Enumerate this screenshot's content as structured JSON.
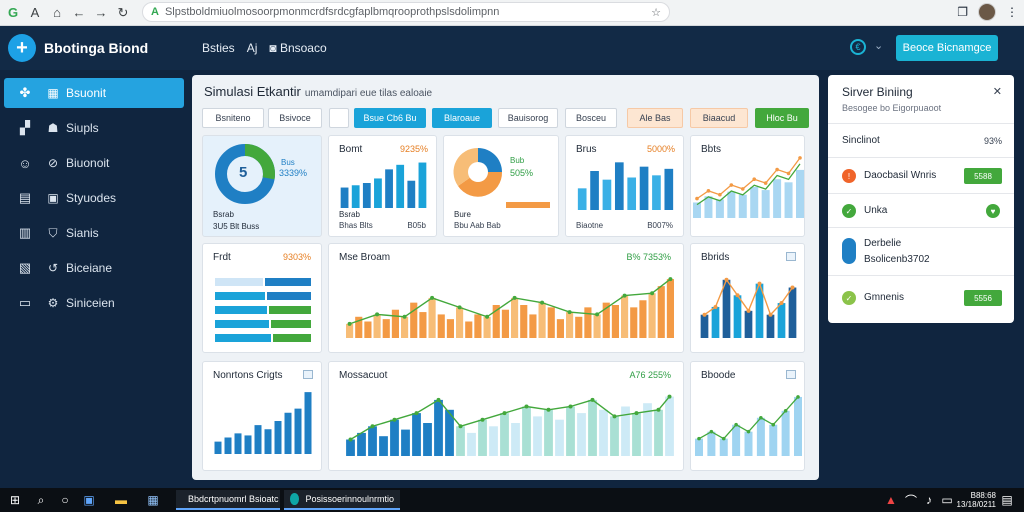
{
  "browser": {
    "url": "Slpstboldmiuolmosoorpmonmcrdfsrdcgfaplbmqrooprothpslsdolimpnn",
    "back_icon": "back-arrow-icon",
    "star_icon": "star-icon"
  },
  "header": {
    "brand": "Bbotinga Biond",
    "nav": [
      "Bsties",
      "Aj",
      "Bnsoaco"
    ],
    "action_button": "Beoce Bicnamgce"
  },
  "sidebar": {
    "items": [
      {
        "label": "Bsuonit",
        "icon": "puzzle-icon",
        "active": true
      },
      {
        "label": "Siupls",
        "icon": "chat-icon",
        "active": false
      },
      {
        "label": "Biuonoit",
        "icon": "user-icon",
        "active": false
      },
      {
        "label": "Styuodes",
        "icon": "grid-icon",
        "active": false
      },
      {
        "label": "Sianis",
        "icon": "table-icon",
        "active": false
      },
      {
        "label": "Biceiane",
        "icon": "document-icon",
        "active": false
      },
      {
        "label": "Siniceien",
        "icon": "monitor-icon",
        "active": false
      }
    ]
  },
  "main": {
    "title": "Simulasi Etkantir",
    "subtitle": "umamdipari eue tilas ealoaie",
    "filters": [
      "Bsniteno",
      "Bsivoce",
      "Bsue Cb6 Bu",
      "Blaroaue",
      "Bauisorog",
      "Bosceu",
      "Ale Bas",
      "Biaacud",
      "Hloc Bu"
    ],
    "cards": {
      "donut": {
        "big_label": "5",
        "val_a": "Bus",
        "val_b": "3339%",
        "foot_a": "Bsrab",
        "foot_b": "3U5 Blt Buss"
      },
      "bar1": {
        "title": "Bomt",
        "value": "9235%",
        "foot_a": "Bsrab",
        "foot_b": "Bhas Blts",
        "foot_c": "B05b"
      },
      "pie": {
        "val_a": "Bub",
        "val_b": "505%",
        "foot_a": "Bure",
        "foot_b": "Bbu Aab Bab"
      },
      "bar2": {
        "title": "Brus",
        "value": "5000%",
        "foot_a": "Biaotne",
        "foot_b": "B007%"
      },
      "area1": {
        "title": "Bbts"
      },
      "hbar": {
        "title": "Frdt",
        "value": "9303%"
      },
      "combo": {
        "title": "Mse Broam",
        "value": "B% 7353%"
      },
      "combo_small": {
        "title": "Bbrids"
      },
      "bar3": {
        "title": "Nonrtons Crigts"
      },
      "blue_combo": {
        "title": "Mossacuot",
        "value": "A76 255%"
      },
      "area2": {
        "title": "Bboode"
      }
    }
  },
  "rpanel": {
    "title": "Sirver Biniing",
    "subtitle": "Besogee bo Eigorpuaoot",
    "rows": [
      {
        "label": "Sinclinot",
        "value": "93%"
      },
      {
        "label": "Daocbasil Wnris",
        "action": "5588",
        "status_icon": "alert-icon"
      },
      {
        "label": "Unka",
        "status_icon": "check-icon"
      },
      {
        "label": "Derbelie",
        "sub": "Bsolicenb3702",
        "status_icon": "info-icon"
      },
      {
        "label": "Gmnenis",
        "action": "5556",
        "status_icon": "check-icon"
      }
    ]
  },
  "taskbar": {
    "apps": [
      "Bbdcrtpnuomrl Bsioatc",
      "Posissoerinnoulnrmtio"
    ],
    "time": "B88:68",
    "date": "13/18/0211"
  },
  "colors": {
    "accent": "#1aa3d9",
    "orange": "#f39a45",
    "green": "#43a83c",
    "navy": "#10253f"
  },
  "chart_data": [
    {
      "type": "bar",
      "categories": [
        "a",
        "b",
        "c",
        "d",
        "e",
        "f",
        "g",
        "h"
      ],
      "values": [
        18,
        20,
        22,
        26,
        34,
        38,
        24,
        40
      ]
    },
    {
      "type": "bar",
      "categories": [
        "a",
        "b",
        "c",
        "d",
        "e",
        "f",
        "g",
        "h"
      ],
      "values": [
        20,
        36,
        28,
        44,
        30,
        40,
        32,
        38
      ]
    },
    {
      "type": "line",
      "x": [
        1,
        2,
        3,
        4,
        5,
        6,
        7,
        8,
        9,
        10
      ],
      "values": [
        20,
        28,
        24,
        34,
        30,
        40,
        36,
        50,
        46,
        62
      ]
    },
    {
      "type": "bar",
      "categories": [
        "a",
        "b",
        "c",
        "d",
        "e",
        "f",
        "g",
        "h",
        "i",
        "j",
        "k",
        "l",
        "m",
        "n",
        "o",
        "p",
        "q",
        "r",
        "s",
        "t",
        "u",
        "v",
        "w",
        "x",
        "y",
        "z",
        "aa",
        "ab",
        "ac",
        "ad",
        "ae",
        "af",
        "ag",
        "ah",
        "ai",
        "aj"
      ],
      "values": [
        12,
        18,
        14,
        20,
        16,
        24,
        18,
        30,
        22,
        34,
        20,
        16,
        26,
        14,
        20,
        18,
        28,
        24,
        34,
        28,
        20,
        30,
        26,
        16,
        22,
        18,
        26,
        20,
        30,
        28,
        36,
        26,
        32,
        38,
        44,
        50
      ]
    },
    {
      "type": "bar",
      "categories": [
        "a",
        "b",
        "c",
        "d",
        "e",
        "f",
        "g",
        "h",
        "i"
      ],
      "values": [
        12,
        16,
        30,
        22,
        14,
        28,
        12,
        18,
        26
      ]
    },
    {
      "type": "bar",
      "categories": [
        "a",
        "b",
        "c",
        "d",
        "e",
        "f",
        "g",
        "h",
        "i",
        "j"
      ],
      "values": [
        6,
        8,
        10,
        9,
        14,
        12,
        16,
        20,
        22,
        30
      ]
    },
    {
      "type": "bar",
      "categories": [
        "a",
        "b",
        "c",
        "d",
        "e",
        "f",
        "g",
        "h",
        "i",
        "j",
        "k",
        "l",
        "m",
        "n",
        "o",
        "p",
        "q",
        "r",
        "s",
        "t",
        "u",
        "v",
        "w",
        "x",
        "y",
        "z",
        "aa",
        "ab",
        "ac",
        "ad"
      ],
      "values": [
        10,
        14,
        18,
        12,
        22,
        16,
        26,
        20,
        34,
        28,
        18,
        14,
        22,
        18,
        26,
        20,
        30,
        24,
        28,
        22,
        30,
        26,
        34,
        28,
        24,
        30,
        26,
        32,
        28,
        36
      ]
    },
    {
      "type": "area",
      "x": [
        1,
        2,
        3,
        4,
        5,
        6,
        7,
        8,
        9
      ],
      "values": [
        10,
        14,
        10,
        18,
        14,
        22,
        18,
        26,
        34
      ]
    }
  ]
}
